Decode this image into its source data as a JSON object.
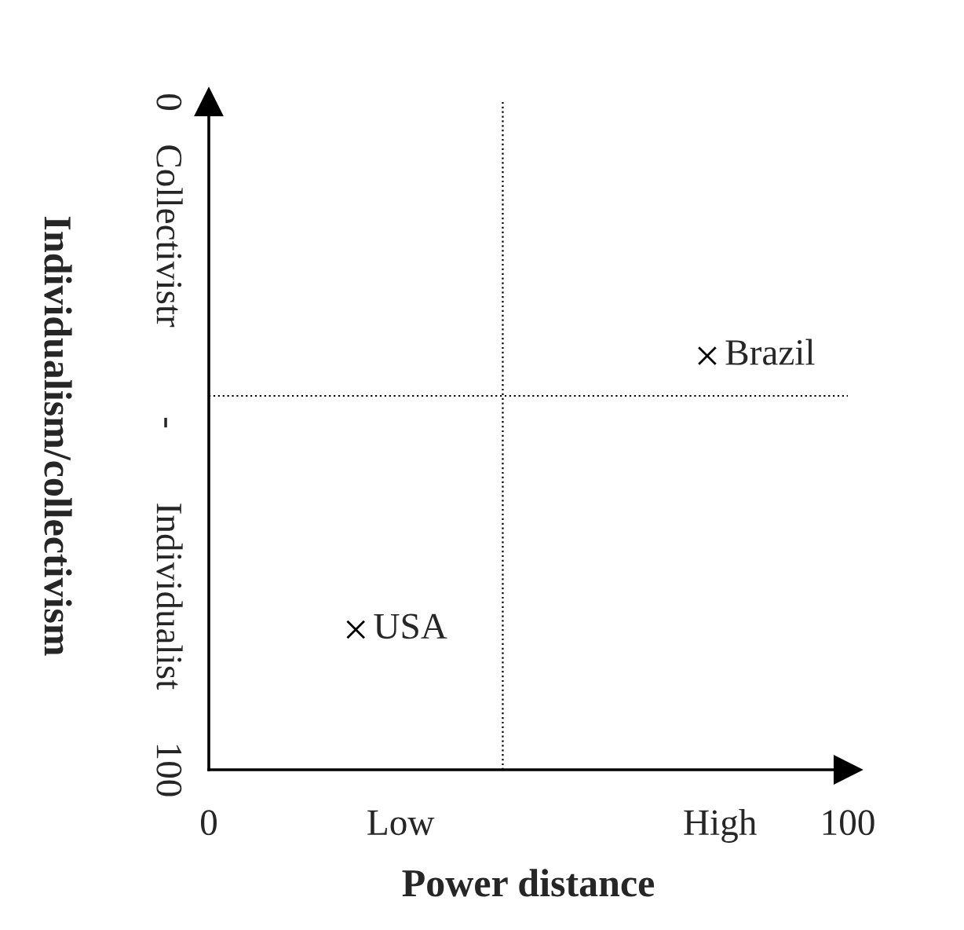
{
  "chart_data": {
    "type": "scatter",
    "xlabel": "Power distance",
    "ylabel": "Individualism/collectivism",
    "xlim": [
      0,
      100
    ],
    "ylim": [
      100,
      0
    ],
    "xticks": [
      0,
      {
        "value": 30,
        "label": "Low"
      },
      {
        "value": 80,
        "label": "High"
      },
      100
    ],
    "yticks": [
      0,
      {
        "value": 20,
        "label": "Collectivistr"
      },
      {
        "value": 48,
        "label": "-"
      },
      {
        "value": 74,
        "label": "Individualist"
      },
      100
    ],
    "series": [
      {
        "name": "Brazil",
        "color": "#000000",
        "x": [
          78
        ],
        "values": [
          38
        ]
      },
      {
        "name": "USA",
        "color": "#000000",
        "x": [
          23
        ],
        "values": [
          79
        ]
      }
    ],
    "ref_lines": [
      {
        "axis": "x",
        "value": 46,
        "line_style": "dotted",
        "color": "#000000"
      },
      {
        "axis": "y",
        "value": 44,
        "line_style": "dotted",
        "color": "#000000"
      }
    ],
    "marker": "cross",
    "grid": false,
    "legend": false
  }
}
